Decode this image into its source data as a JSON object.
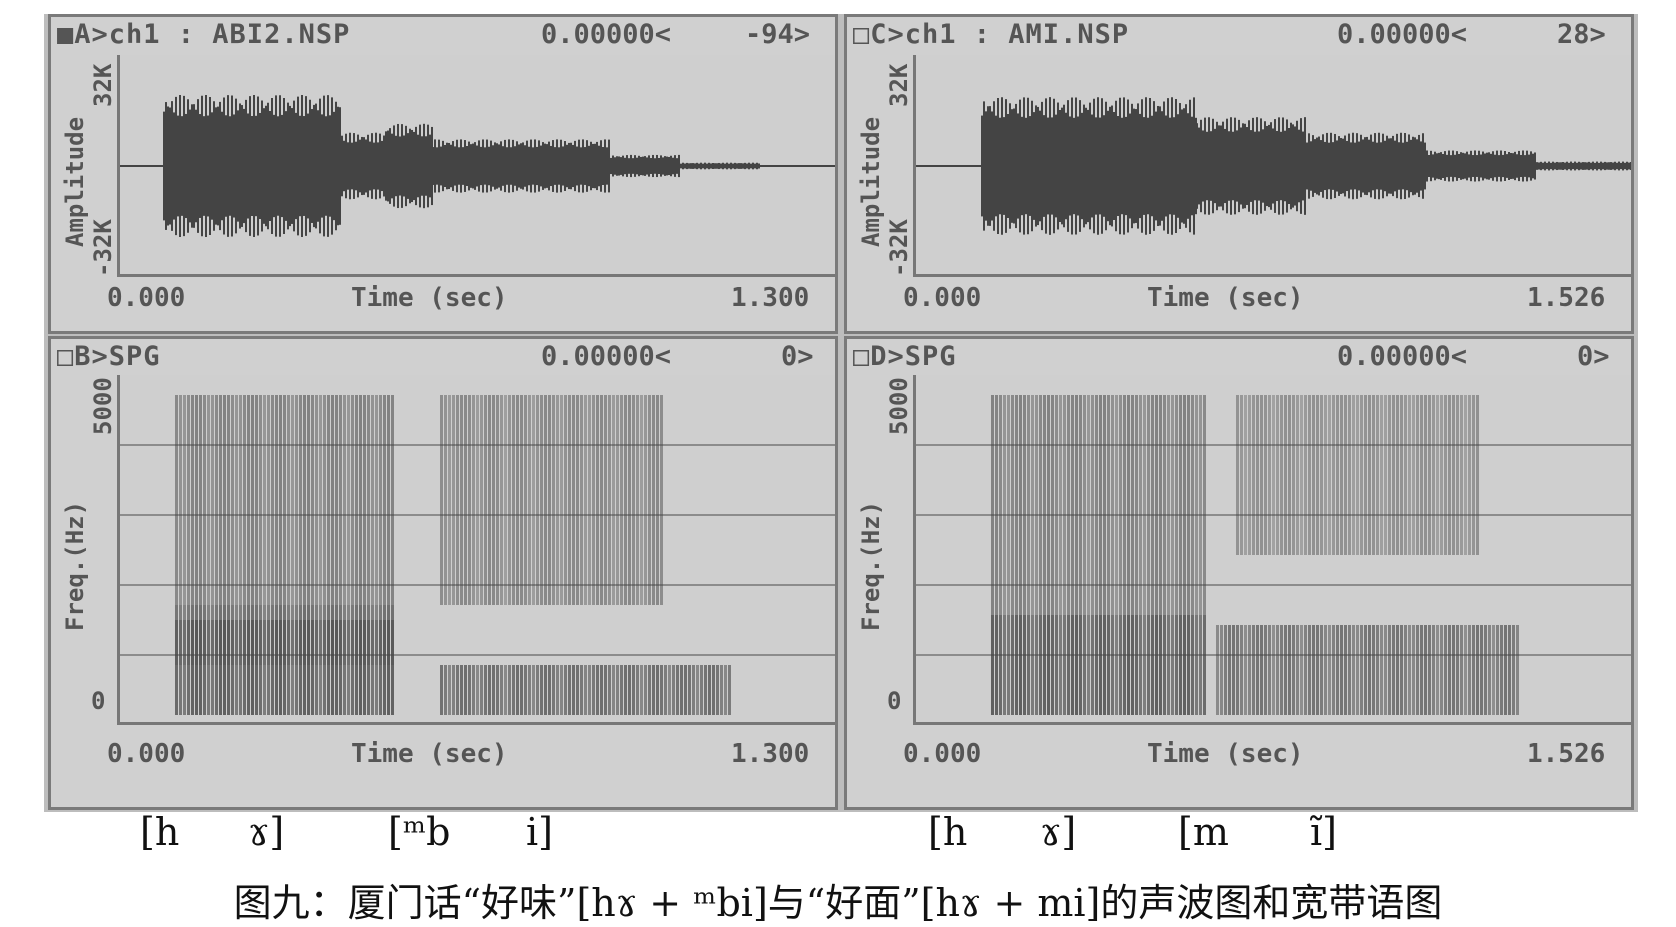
{
  "panels": {
    "a": {
      "title": "■A>ch1 : ABI2.NSP",
      "cursor_value": "0.00000<",
      "cursor_offset": "-94>",
      "y_label": "Amplitude",
      "y_max": "32K",
      "y_min": "-32K",
      "x_start": "0.000",
      "x_label": "Time (sec)",
      "x_end": "1.300"
    },
    "b": {
      "title": "□B>SPG",
      "cursor_value": "0.00000<",
      "cursor_offset": "0>",
      "y_label": "Freq.(Hz)",
      "y_max": "5000",
      "y_min": "0",
      "x_start": "0.000",
      "x_label": "Time (sec)",
      "x_end": "1.300"
    },
    "c": {
      "title": "□C>ch1 : AMI.NSP",
      "cursor_value": "0.00000<",
      "cursor_offset": "28>",
      "y_label": "Amplitude",
      "y_max": "32K",
      "y_min": "-32K",
      "x_start": "0.000",
      "x_label": "Time (sec)",
      "x_end": "1.526"
    },
    "d": {
      "title": "□D>SPG",
      "cursor_value": "0.00000<",
      "cursor_offset": "0>",
      "y_label": "Freq.(Hz)",
      "y_max": "5000",
      "y_min": "0",
      "x_start": "0.000",
      "x_label": "Time (sec)",
      "x_end": "1.526"
    }
  },
  "segments": {
    "left": [
      "[h",
      "ɤ]",
      "[ᵐb",
      "i]"
    ],
    "right": [
      "[h",
      "ɤ]",
      "[m",
      "ĩ]"
    ]
  },
  "caption": "图九：厦门话“好味”[hɤ + ᵐbi]与“好面”[hɤ + mi]的声波图和宽带语图",
  "colors": {
    "background": "#d0d0d0",
    "border": "#7a7a7a",
    "trace": "#444444",
    "text": "#555555"
  }
}
